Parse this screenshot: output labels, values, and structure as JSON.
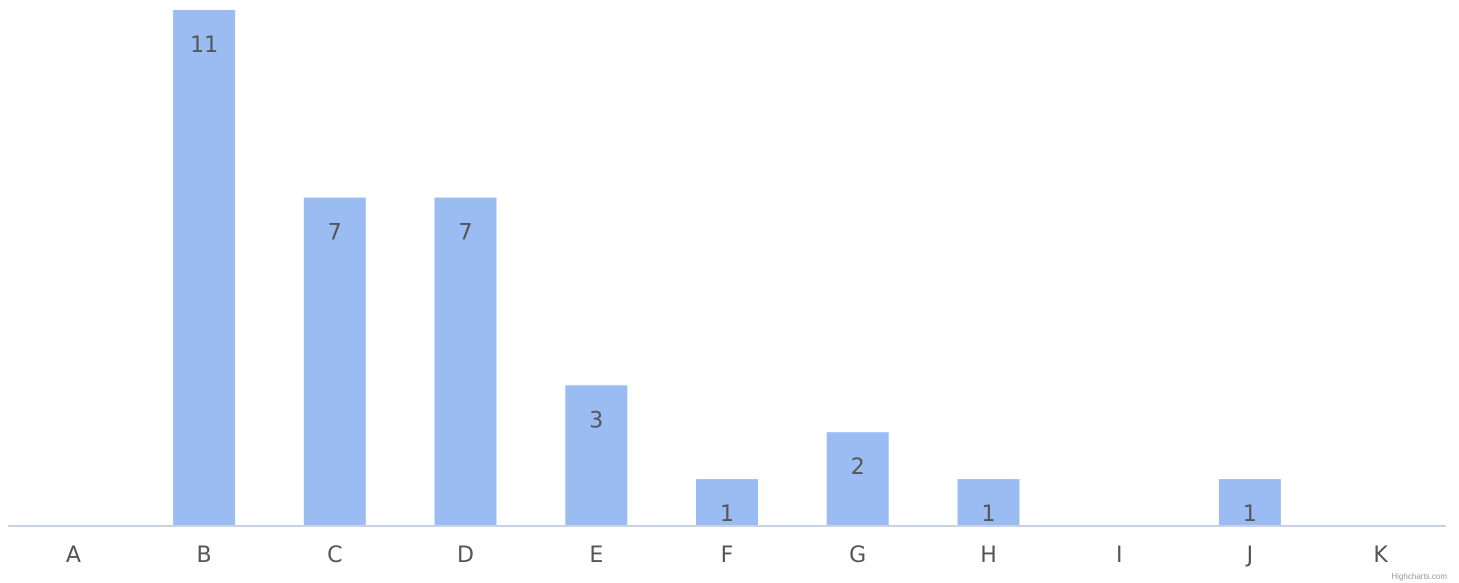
{
  "chart_data": {
    "type": "bar",
    "categories": [
      "A",
      "B",
      "C",
      "D",
      "E",
      "F",
      "G",
      "H",
      "I",
      "J",
      "K"
    ],
    "values": [
      0,
      11,
      7,
      7,
      3,
      1,
      2,
      1,
      0,
      1,
      0
    ],
    "data_labels": [
      "",
      "11",
      "7",
      "7",
      "3",
      "1",
      "2",
      "1",
      "",
      "1",
      ""
    ],
    "title": "",
    "xlabel": "",
    "ylabel": "",
    "ylim": [
      0,
      11
    ],
    "grid": false,
    "legend": "none",
    "bar_color": "#9bbcf3"
  },
  "credit": "Highcharts.com"
}
